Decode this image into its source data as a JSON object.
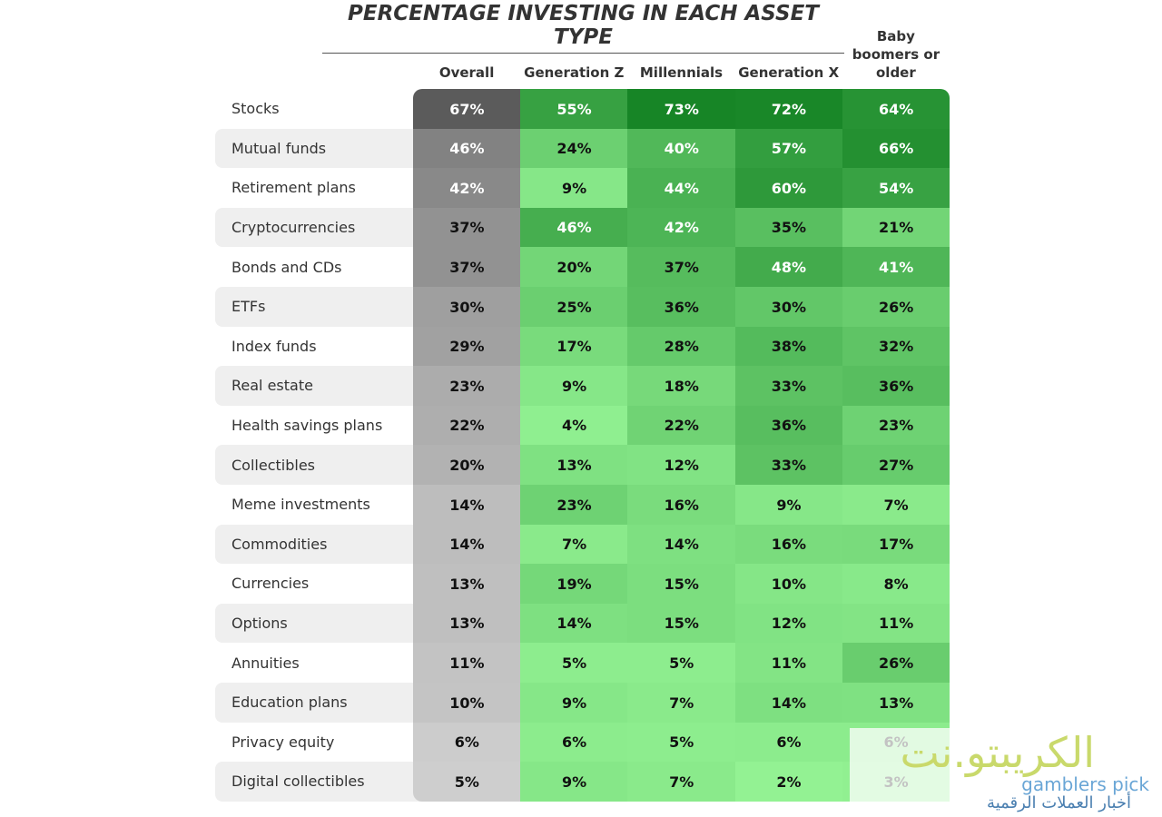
{
  "title": "PERCENTAGE INVESTING IN EACH ASSET TYPE",
  "table": {
    "columns": [
      "Overall",
      "Generation Z",
      "Millennials",
      "Generation X",
      "Baby boomers or older"
    ],
    "rows": [
      [
        "Stocks",
        "67%",
        "55%",
        "73%",
        "72%",
        "64%"
      ],
      [
        "Mutual funds",
        "46%",
        "24%",
        "40%",
        "57%",
        "66%"
      ],
      [
        "Retirement plans",
        "42%",
        "9%",
        "44%",
        "60%",
        "54%"
      ],
      [
        "Cryptocurrencies",
        "37%",
        "46%",
        "42%",
        "35%",
        "21%"
      ],
      [
        "Bonds and CDs",
        "37%",
        "20%",
        "37%",
        "48%",
        "41%"
      ],
      [
        "ETFs",
        "30%",
        "25%",
        "36%",
        "30%",
        "26%"
      ],
      [
        "Index funds",
        "29%",
        "17%",
        "28%",
        "38%",
        "32%"
      ],
      [
        "Real estate",
        "23%",
        "9%",
        "18%",
        "33%",
        "36%"
      ],
      [
        "Health savings plans",
        "22%",
        "4%",
        "22%",
        "36%",
        "23%"
      ],
      [
        "Collectibles",
        "20%",
        "13%",
        "12%",
        "33%",
        "27%"
      ],
      [
        "Meme investments",
        "14%",
        "23%",
        "16%",
        "9%",
        "7%"
      ],
      [
        "Commodities",
        "14%",
        "7%",
        "14%",
        "16%",
        "17%"
      ],
      [
        "Currencies",
        "13%",
        "19%",
        "15%",
        "10%",
        "8%"
      ],
      [
        "Options",
        "13%",
        "14%",
        "15%",
        "12%",
        "11%"
      ],
      [
        "Annuities",
        "11%",
        "5%",
        "5%",
        "11%",
        "26%"
      ],
      [
        "Education plans",
        "10%",
        "9%",
        "7%",
        "14%",
        "13%"
      ],
      [
        "Privacy equity",
        "6%",
        "6%",
        "5%",
        "6%",
        "6%"
      ],
      [
        "Digital collectibles",
        "5%",
        "9%",
        "7%",
        "2%",
        "3%"
      ]
    ]
  },
  "watermark": {
    "brand": "الكريبتو.نت",
    "sub": "أخبار العملات الرقمية",
    "partner": "gamblers pick"
  }
}
